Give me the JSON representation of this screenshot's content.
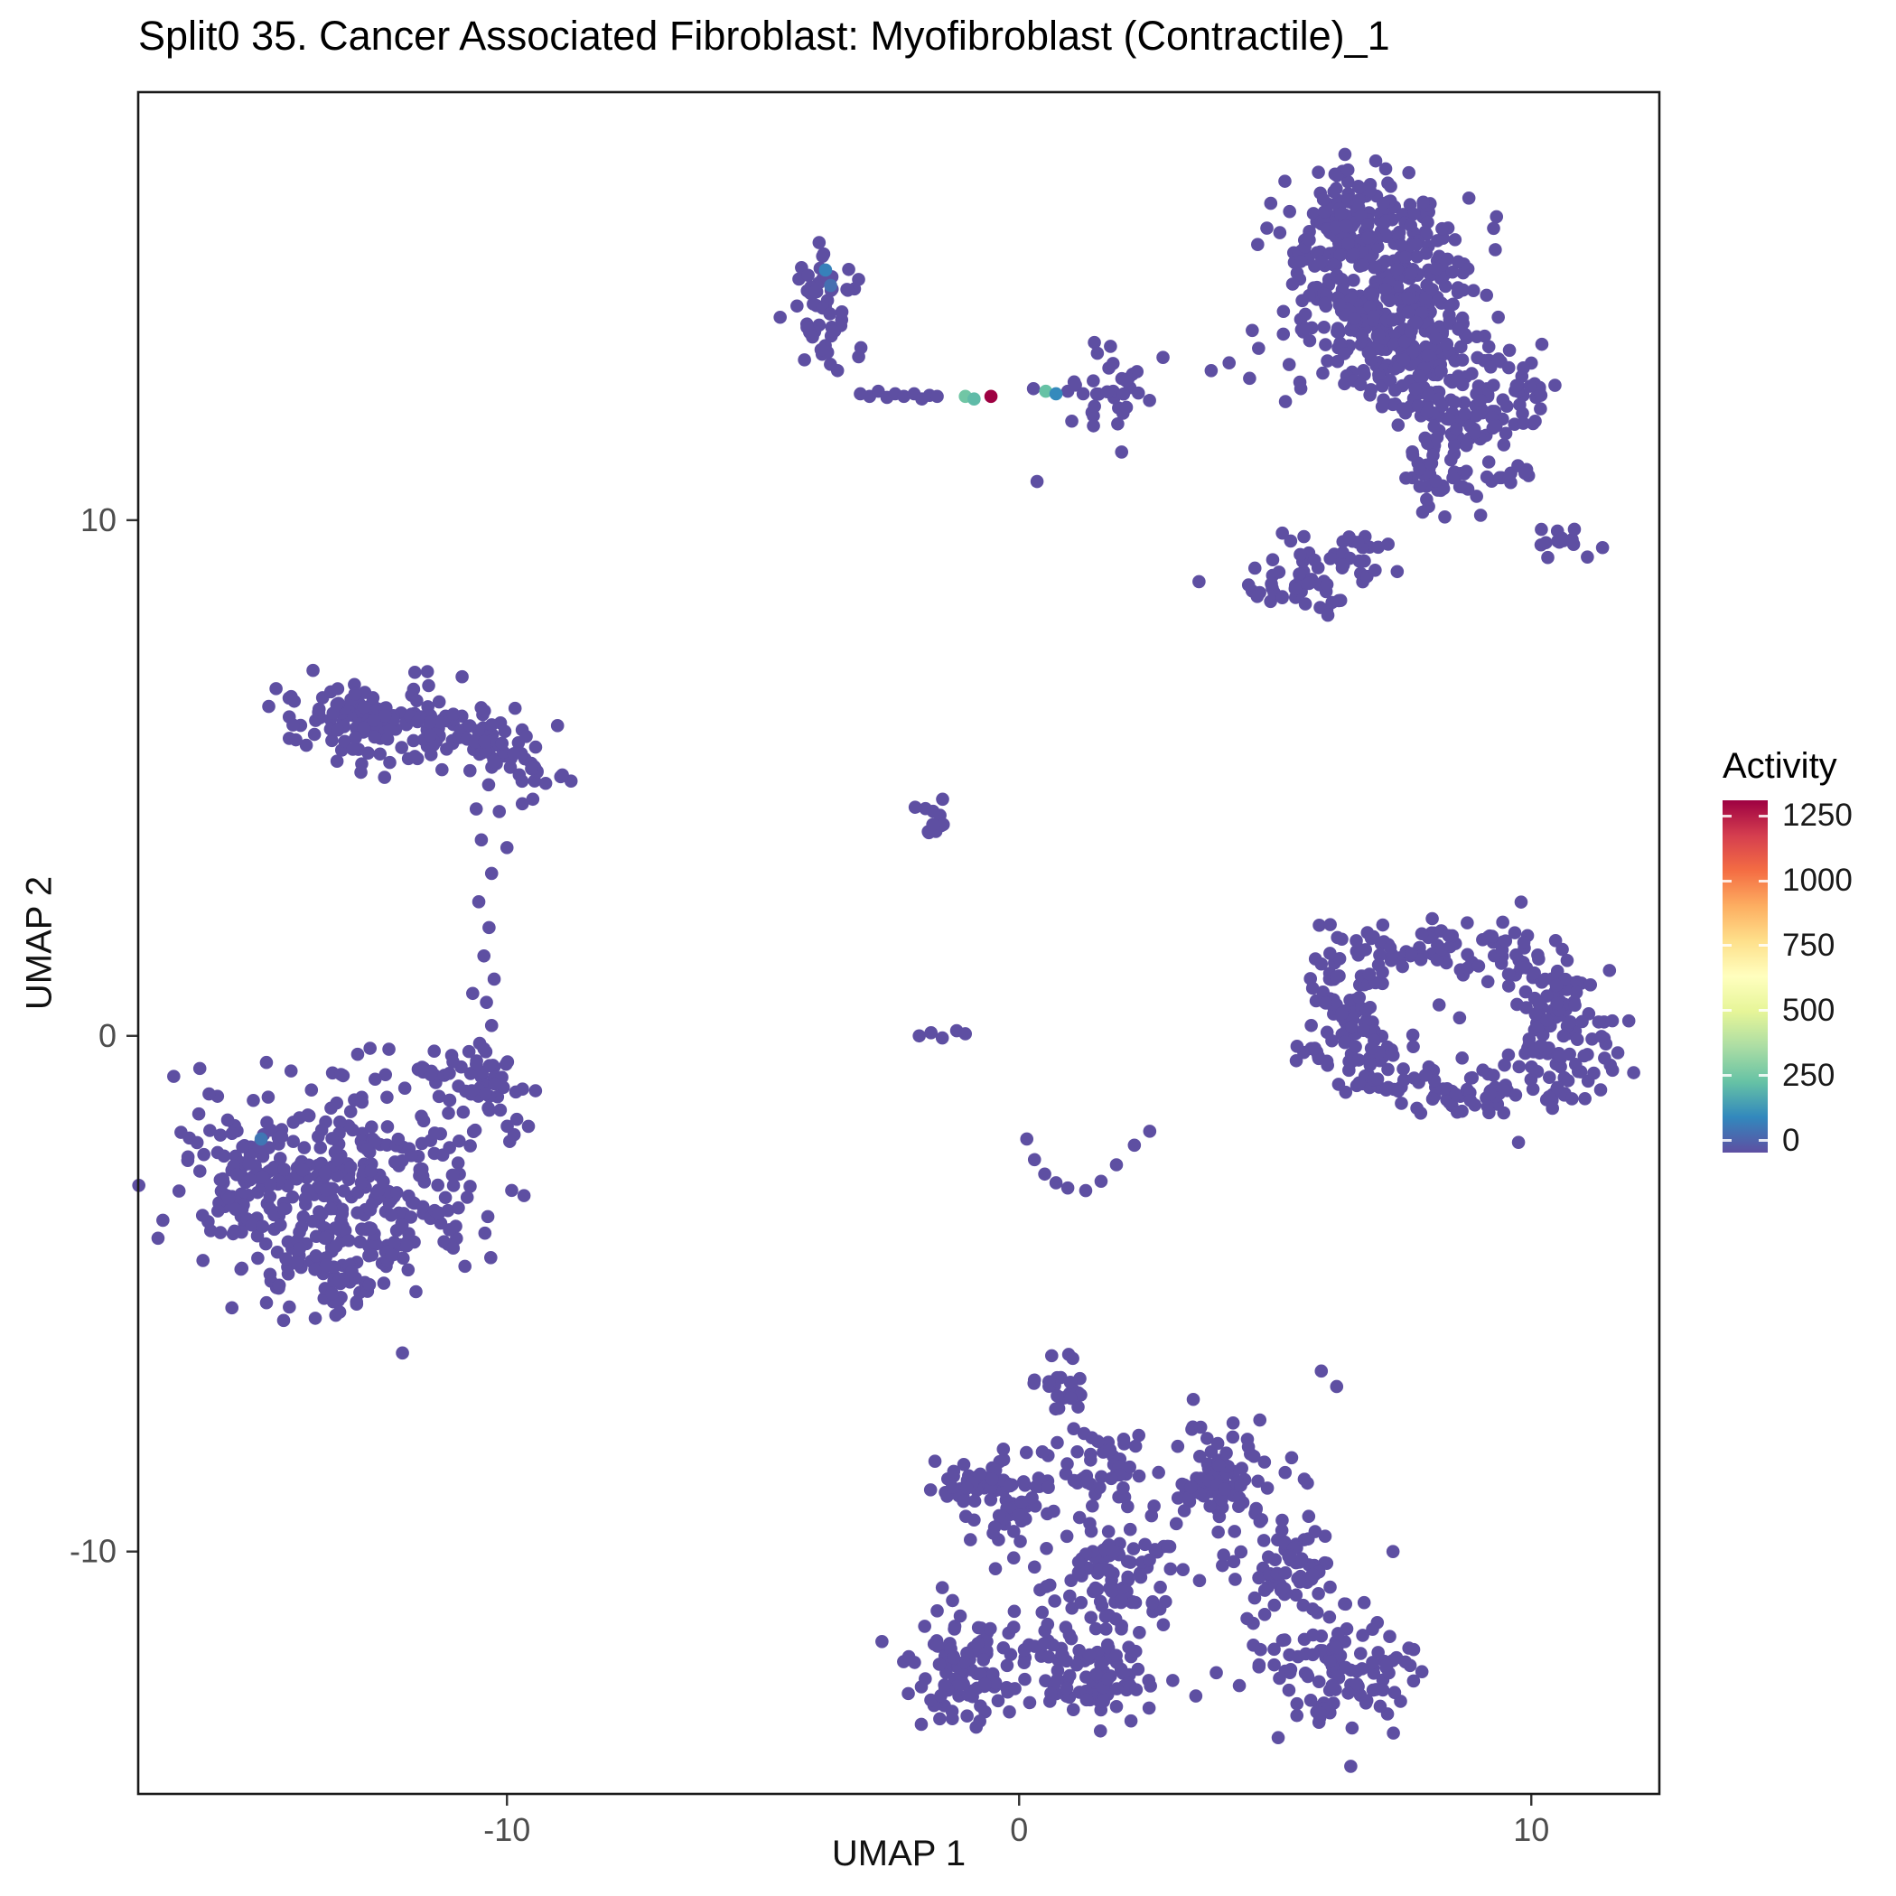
{
  "title": "Split0 35. Cancer Associated Fibroblast: Myofibroblast (Contractile)_1",
  "chart_data": {
    "type": "scatter",
    "title": "Split0 35. Cancer Associated Fibroblast: Myofibroblast (Contractile)_1",
    "xlabel": "UMAP 1",
    "ylabel": "UMAP 2",
    "xlim": [
      -17.2,
      12.5
    ],
    "ylim": [
      -14.7,
      18.3
    ],
    "x_ticks": [
      -10,
      0,
      10
    ],
    "y_ticks": [
      -10,
      0,
      10
    ],
    "grid": false,
    "point_radius_px": 7.3,
    "legend": {
      "title": "Activity",
      "position": "right",
      "ticks": [
        0,
        250,
        500,
        750,
        1000,
        1250
      ],
      "vmin": 0,
      "vmax": 1250,
      "colormap_name": "spectral_reversed",
      "colormap_stops": [
        "#5E4FA2",
        "#3288BD",
        "#66C2A5",
        "#ABDDA4",
        "#E6F598",
        "#FFFFBF",
        "#FEE08B",
        "#FDAE61",
        "#F46D43",
        "#D53E4F",
        "#9E0142"
      ]
    },
    "clusters": [
      {
        "name": "top-right-a",
        "cx": 6.4,
        "cy": 15.6,
        "sx": 0.75,
        "sy": 0.62,
        "n": 150
      },
      {
        "name": "top-right-b",
        "cx": 7.5,
        "cy": 14.8,
        "sx": 0.85,
        "sy": 0.7,
        "n": 150
      },
      {
        "name": "top-right-c",
        "cx": 6.7,
        "cy": 13.9,
        "sx": 0.8,
        "sy": 0.55,
        "n": 110
      },
      {
        "name": "top-right-d",
        "cx": 7.9,
        "cy": 13.1,
        "sx": 0.8,
        "sy": 0.55,
        "n": 100
      },
      {
        "name": "top-right-e",
        "cx": 8.5,
        "cy": 12.1,
        "sx": 0.6,
        "sy": 0.5,
        "n": 70
      },
      {
        "name": "top-right-tail",
        "cx": 8.3,
        "cy": 10.9,
        "sx": 0.45,
        "sy": 0.5,
        "n": 45
      },
      {
        "name": "top-right-edge",
        "cx": 9.6,
        "cy": 12.5,
        "sx": 0.45,
        "sy": 0.5,
        "n": 30
      },
      {
        "name": "top-right-knob",
        "cx": 5.5,
        "cy": 8.85,
        "sx": 0.55,
        "sy": 0.4,
        "n": 50
      },
      {
        "name": "top-right-knob2",
        "cx": 6.6,
        "cy": 9.4,
        "sx": 0.35,
        "sy": 0.3,
        "n": 20
      },
      {
        "name": "top-right-strip",
        "cx": 10.7,
        "cy": 9.6,
        "sx": 0.45,
        "sy": 0.15,
        "n": 14
      },
      {
        "name": "top-right-mid",
        "cx": 9.4,
        "cy": 11.0,
        "sx": 0.3,
        "sy": 0.25,
        "n": 12
      },
      {
        "name": "top-left-small",
        "cx": -3.8,
        "cy": 14.2,
        "sx": 0.3,
        "sy": 0.65,
        "n": 55
      },
      {
        "name": "band-cluster",
        "cx": 1.85,
        "cy": 12.55,
        "sx": 0.4,
        "sy": 0.45,
        "n": 32
      },
      {
        "name": "left-elong-a",
        "cx": -13.0,
        "cy": 6.2,
        "sx": 0.75,
        "sy": 0.4,
        "n": 85
      },
      {
        "name": "left-elong-b",
        "cx": -11.6,
        "cy": 5.9,
        "sx": 0.75,
        "sy": 0.4,
        "n": 80
      },
      {
        "name": "left-elong-c",
        "cx": -10.2,
        "cy": 5.5,
        "sx": 0.5,
        "sy": 0.3,
        "n": 35
      },
      {
        "name": "left-elong-tip",
        "cx": -9.4,
        "cy": 5.15,
        "sx": 0.3,
        "sy": 0.25,
        "n": 16
      },
      {
        "name": "bottom-left-main",
        "cx": -13.2,
        "cy": -2.9,
        "sx": 1.4,
        "sy": 1.05,
        "n": 330
      },
      {
        "name": "bottom-left-knob",
        "cx": -10.7,
        "cy": -0.9,
        "sx": 0.6,
        "sy": 0.45,
        "n": 55
      },
      {
        "name": "bottom-left-west",
        "cx": -15.3,
        "cy": -2.5,
        "sx": 0.55,
        "sy": 0.65,
        "n": 55
      },
      {
        "name": "bottom-left-south",
        "cx": -13.5,
        "cy": -4.5,
        "sx": 0.75,
        "sy": 0.45,
        "n": 55
      },
      {
        "name": "mid-small",
        "cx": -1.6,
        "cy": 4.3,
        "sx": 0.2,
        "sy": 0.28,
        "n": 12
      },
      {
        "name": "ring-left",
        "cx": 6.3,
        "cy": 0.4,
        "sx": 0.45,
        "sy": 0.75,
        "n": 80
      },
      {
        "name": "ring-top",
        "cx": 7.7,
        "cy": 1.6,
        "sx": 0.8,
        "sy": 0.28,
        "n": 50
      },
      {
        "name": "ring-topright",
        "cx": 9.3,
        "cy": 1.65,
        "sx": 0.6,
        "sy": 0.3,
        "n": 40
      },
      {
        "name": "ring-right",
        "cx": 10.5,
        "cy": 0.0,
        "sx": 0.55,
        "sy": 0.75,
        "n": 110
      },
      {
        "name": "ring-bottom",
        "cx": 8.6,
        "cy": -1.1,
        "sx": 0.95,
        "sy": 0.25,
        "n": 55
      },
      {
        "name": "ring-bottomleft",
        "cx": 7.1,
        "cy": -0.5,
        "sx": 0.35,
        "sy": 0.4,
        "n": 28
      },
      {
        "name": "bottom-top-knob",
        "cx": 0.85,
        "cy": -6.8,
        "sx": 0.3,
        "sy": 0.35,
        "n": 28
      },
      {
        "name": "bottom-lefttop",
        "cx": -0.2,
        "cy": -9.0,
        "sx": 0.5,
        "sy": 0.5,
        "n": 70
      },
      {
        "name": "bottom-lefttop2",
        "cx": -1.3,
        "cy": -8.7,
        "sx": 0.25,
        "sy": 0.3,
        "n": 16
      },
      {
        "name": "bottom-leftbottom",
        "cx": -1.0,
        "cy": -12.3,
        "sx": 0.7,
        "sy": 0.5,
        "n": 105
      },
      {
        "name": "bottom-centerbottom",
        "cx": 1.5,
        "cy": -12.4,
        "sx": 0.65,
        "sy": 0.45,
        "n": 85
      },
      {
        "name": "bottom-center",
        "cx": 1.8,
        "cy": -10.4,
        "sx": 0.6,
        "sy": 0.55,
        "n": 95
      },
      {
        "name": "bottom-centertop",
        "cx": 1.7,
        "cy": -8.3,
        "sx": 0.4,
        "sy": 0.35,
        "n": 40
      },
      {
        "name": "bottom-righttop",
        "cx": 4.0,
        "cy": -8.6,
        "sx": 0.6,
        "sy": 0.5,
        "n": 85
      },
      {
        "name": "bottom-right",
        "cx": 5.4,
        "cy": -10.4,
        "sx": 0.55,
        "sy": 0.5,
        "n": 75
      },
      {
        "name": "bottom-rightbottom",
        "cx": 6.2,
        "cy": -12.4,
        "sx": 0.7,
        "sy": 0.5,
        "n": 105
      }
    ],
    "extra_points": [
      [
        -3.1,
        12.45
      ],
      [
        -2.92,
        12.4
      ],
      [
        -2.75,
        12.5
      ],
      [
        -2.58,
        12.38
      ],
      [
        -2.42,
        12.45
      ],
      [
        -2.25,
        12.4
      ],
      [
        -2.05,
        12.45
      ],
      [
        -1.9,
        12.35
      ],
      [
        -1.75,
        12.42
      ],
      [
        -1.6,
        12.4
      ],
      [
        0.28,
        12.55
      ],
      [
        0.95,
        12.5
      ],
      [
        1.1,
        12.62
      ],
      [
        1.25,
        12.45
      ],
      [
        0.35,
        10.75
      ],
      [
        3.75,
        12.9
      ],
      [
        4.1,
        13.05
      ],
      [
        4.5,
        12.75
      ],
      [
        5.2,
        12.3
      ],
      [
        5.5,
        12.55
      ],
      [
        -10.6,
        4.4
      ],
      [
        -10.15,
        4.35
      ],
      [
        -9.7,
        4.5
      ],
      [
        -10.5,
        3.8
      ],
      [
        -10.0,
        3.65
      ],
      [
        -10.3,
        3.15
      ],
      [
        -10.55,
        2.6
      ],
      [
        -10.35,
        2.1
      ],
      [
        -10.45,
        1.55
      ],
      [
        -10.25,
        1.1
      ],
      [
        -10.4,
        0.65
      ],
      [
        -10.3,
        0.2
      ],
      [
        -10.45,
        -0.25
      ],
      [
        -1.95,
        0.0
      ],
      [
        -1.72,
        0.06
      ],
      [
        -1.5,
        -0.04
      ],
      [
        -1.22,
        0.1
      ],
      [
        -1.05,
        0.04
      ],
      [
        0.15,
        -2.0
      ],
      [
        0.3,
        -2.4
      ],
      [
        0.5,
        -2.68
      ],
      [
        0.72,
        -2.85
      ],
      [
        0.95,
        -2.95
      ],
      [
        1.3,
        -3.0
      ],
      [
        1.6,
        -2.82
      ],
      [
        1.9,
        -2.5
      ],
      [
        2.25,
        -2.12
      ],
      [
        2.55,
        -1.85
      ],
      [
        8.2,
        0.6
      ],
      [
        8.6,
        0.35
      ],
      [
        6.8,
        2.0
      ],
      [
        7.1,
        2.15
      ],
      [
        -1.5,
        -10.7
      ],
      [
        -1.3,
        -10.95
      ],
      [
        -1.6,
        -11.15
      ],
      [
        -1.15,
        -11.25
      ],
      [
        0.3,
        -10.3
      ],
      [
        0.6,
        -10.65
      ],
      [
        2.9,
        -9.9
      ],
      [
        3.2,
        -10.35
      ],
      [
        2.6,
        -11.0
      ],
      [
        3.0,
        -12.5
      ],
      [
        3.45,
        -12.8
      ],
      [
        3.85,
        -12.35
      ],
      [
        4.3,
        -12.6
      ],
      [
        4.45,
        -11.3
      ],
      [
        5.9,
        -6.5
      ],
      [
        6.2,
        -6.8
      ],
      [
        7.3,
        -10.0
      ],
      [
        3.4,
        -7.05
      ],
      [
        4.7,
        -7.45
      ]
    ],
    "highlight_points": [
      {
        "x": -3.78,
        "y": 14.85,
        "activity": 110
      },
      {
        "x": -3.68,
        "y": 14.55,
        "activity": 70
      },
      {
        "x": -14.8,
        "y": -2.0,
        "activity": 85
      },
      {
        "x": -1.05,
        "y": 12.4,
        "activity": 270
      },
      {
        "x": -0.88,
        "y": 12.35,
        "activity": 235
      },
      {
        "x": 0.52,
        "y": 12.5,
        "activity": 250
      },
      {
        "x": 0.72,
        "y": 12.45,
        "activity": 130
      },
      {
        "x": -0.55,
        "y": 12.4,
        "activity": 1250
      }
    ]
  }
}
